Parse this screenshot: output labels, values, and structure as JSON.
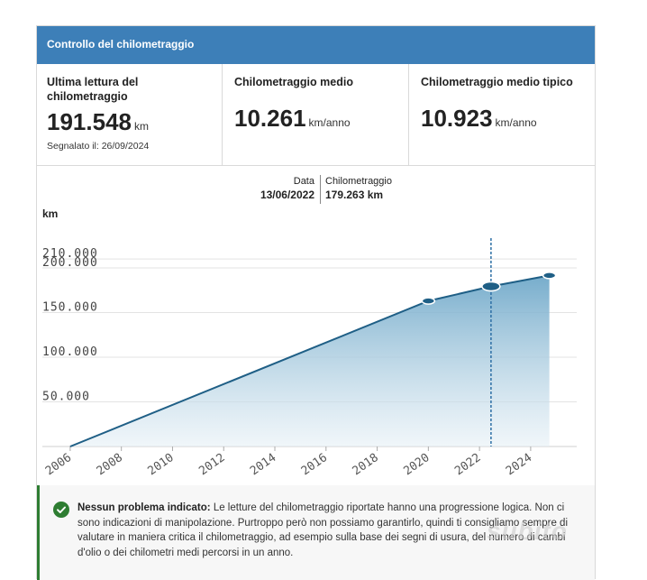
{
  "header": {
    "title": "Controllo del chilometraggio"
  },
  "stats": [
    {
      "label": "Ultima lettura del chilometraggio",
      "value": "191.548",
      "unit": "km",
      "note": "Segnalato il: 26/09/2024"
    },
    {
      "label": "Chilometraggio medio",
      "value": "10.261",
      "unit": "km/anno"
    },
    {
      "label": "Chilometraggio medio tipico",
      "value": "10.923",
      "unit": "km/anno"
    }
  ],
  "tooltip": {
    "date_label": "Data",
    "date_value": "13/06/2022",
    "km_label": "Chilometraggio",
    "km_value": "179.263 km"
  },
  "notice": {
    "title": "Nessun problema indicato:",
    "text": "Le letture del chilometraggio riportate hanno una progressione logica. Non ci sono indicazioni di manipolazione. Purtroppo però non possiamo garantirlo, quindi ti consigliamo sempre di valutare in maniera critica il chilometraggio, ad esempio sulla base dei segni di usura, del numero di cambi d'olio o dei chilometri medi percorsi in un anno."
  },
  "watermark": "subito",
  "colors": {
    "header": "#3d7fb8",
    "line": "#1f5f86",
    "fill_top": "#6fa8c9",
    "check": "#2e7d32"
  },
  "chart_data": {
    "type": "area",
    "ylabel": "km",
    "xlabel": "",
    "ylim": [
      0,
      210000
    ],
    "yticks": [
      50000,
      100000,
      150000,
      200000,
      210000
    ],
    "ytick_labels": [
      "50.000",
      "100.000",
      "150.000",
      "200.000",
      "210.000"
    ],
    "xticks": [
      2006,
      2008,
      2010,
      2012,
      2014,
      2016,
      2018,
      2020,
      2022,
      2024
    ],
    "xlim": [
      2004.7,
      2025.8
    ],
    "grid": true,
    "series": [
      {
        "points": [
          {
            "x": 2006.0,
            "y": 0
          },
          {
            "x": 2020.0,
            "y": 163000
          },
          {
            "x": 2022.45,
            "y": 179263
          },
          {
            "x": 2024.73,
            "y": 191548
          }
        ]
      }
    ],
    "highlight": {
      "x": 2022.45,
      "y": 179263
    }
  }
}
